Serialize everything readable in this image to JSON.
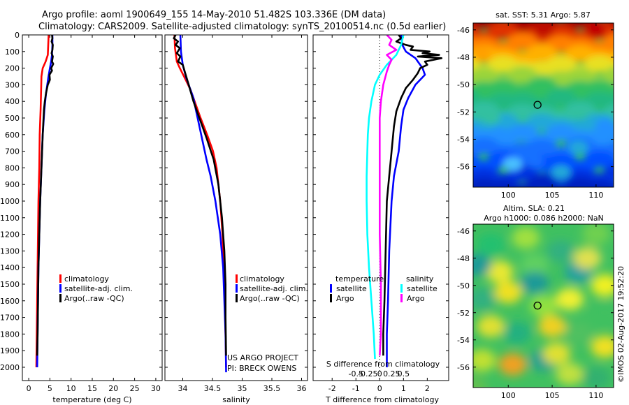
{
  "title": {
    "line1": "Argo profile: aoml 1900649_155 14-May-2010 51.482S 103.336E (DM data)",
    "line2": "Climatology: CARS2009. Satellite-adjusted climatology: synTS_20100514.nc (0.5d earlier)"
  },
  "credits": {
    "project": "US ARGO PROJECT",
    "pi": "PI: BRECK OWENS",
    "stamp": "©IMOS 02-Aug-2017 19:52:20"
  },
  "colors": {
    "climatology": "#ff0000",
    "satellite": "#0000ff",
    "argo": "#000000",
    "sal_satellite": "#00ffff",
    "sal_argo": "#ff00ff"
  },
  "chart_data": [
    {
      "type": "line",
      "id": "temperature",
      "xlabel": "temperature (deg C)",
      "xlim": [
        -1.5,
        31.5
      ],
      "ylim": [
        0,
        2080
      ],
      "y_inverted": true,
      "xticks": [
        0,
        5,
        10,
        15,
        20,
        25,
        30
      ],
      "yticks": [
        0,
        100,
        200,
        300,
        400,
        500,
        600,
        700,
        800,
        900,
        1000,
        1100,
        1200,
        1300,
        1400,
        1500,
        1600,
        1700,
        1800,
        1900,
        2000
      ],
      "legend": [
        "climatology",
        "satellite-adj. clim.",
        "Argo(..raw -QC)"
      ],
      "series": [
        {
          "name": "climatology",
          "color": "#ff0000",
          "points": [
            [
              4.7,
              0
            ],
            [
              4.6,
              60
            ],
            [
              4.5,
              120
            ],
            [
              4.0,
              160
            ],
            [
              3.3,
              200
            ],
            [
              3.0,
              250
            ],
            [
              2.9,
              350
            ],
            [
              2.8,
              450
            ],
            [
              2.6,
              600
            ],
            [
              2.5,
              800
            ],
            [
              2.3,
              1000
            ],
            [
              2.2,
              1200
            ],
            [
              2.1,
              1400
            ],
            [
              2.0,
              1600
            ],
            [
              1.9,
              1800
            ],
            [
              1.8,
              2000
            ]
          ]
        },
        {
          "name": "satellite-adj. clim.",
          "color": "#0000ff",
          "points": [
            [
              5.6,
              0
            ],
            [
              5.6,
              60
            ],
            [
              5.5,
              120
            ],
            [
              5.3,
              160
            ],
            [
              5.0,
              200
            ],
            [
              4.6,
              260
            ],
            [
              4.1,
              350
            ],
            [
              3.7,
              450
            ],
            [
              3.3,
              600
            ],
            [
              3.0,
              800
            ],
            [
              2.7,
              1000
            ],
            [
              2.5,
              1200
            ],
            [
              2.3,
              1400
            ],
            [
              2.2,
              1600
            ],
            [
              2.1,
              1800
            ],
            [
              2.0,
              2000
            ]
          ]
        },
        {
          "name": "Argo(..raw -QC)",
          "color": "#000000",
          "points": [
            [
              5.5,
              0
            ],
            [
              5.6,
              20
            ],
            [
              5.4,
              40
            ],
            [
              5.7,
              60
            ],
            [
              5.6,
              90
            ],
            [
              5.4,
              110
            ],
            [
              5.7,
              130
            ],
            [
              5.5,
              160
            ],
            [
              5.8,
              175
            ],
            [
              5.3,
              200
            ],
            [
              5.5,
              215
            ],
            [
              4.9,
              240
            ],
            [
              5.0,
              270
            ],
            [
              4.5,
              300
            ],
            [
              4.1,
              350
            ],
            [
              3.8,
              400
            ],
            [
              3.6,
              450
            ],
            [
              3.3,
              600
            ],
            [
              3.0,
              800
            ],
            [
              2.7,
              1000
            ],
            [
              2.5,
              1200
            ],
            [
              2.3,
              1400
            ],
            [
              2.2,
              1600
            ],
            [
              2.1,
              1800
            ],
            [
              2.0,
              1930
            ]
          ]
        }
      ]
    },
    {
      "type": "line",
      "id": "salinity",
      "xlabel": "salinity",
      "xlim": [
        33.7,
        36.1
      ],
      "ylim": [
        0,
        2080
      ],
      "y_inverted": true,
      "xticks": [
        34,
        34.5,
        35,
        35.5,
        36
      ],
      "legend": [
        "climatology",
        "satellite-adj. clim.",
        "Argo(..raw -QC)"
      ],
      "series": [
        {
          "name": "climatology",
          "color": "#ff0000",
          "points": [
            [
              33.86,
              0
            ],
            [
              33.87,
              80
            ],
            [
              33.9,
              160
            ],
            [
              33.95,
              200
            ],
            [
              34.05,
              270
            ],
            [
              34.13,
              330
            ],
            [
              34.2,
              400
            ],
            [
              34.3,
              500
            ],
            [
              34.41,
              600
            ],
            [
              34.51,
              700
            ],
            [
              34.57,
              800
            ],
            [
              34.63,
              1000
            ],
            [
              34.67,
              1200
            ],
            [
              34.7,
              1500
            ],
            [
              34.72,
              1800
            ],
            [
              34.73,
              2000
            ]
          ]
        },
        {
          "name": "satellite-adj. clim.",
          "color": "#0000ff",
          "points": [
            [
              33.96,
              0
            ],
            [
              33.97,
              100
            ],
            [
              34.0,
              180
            ],
            [
              34.06,
              260
            ],
            [
              34.12,
              320
            ],
            [
              34.18,
              380
            ],
            [
              34.22,
              450
            ],
            [
              34.28,
              550
            ],
            [
              34.34,
              650
            ],
            [
              34.4,
              750
            ],
            [
              34.47,
              850
            ],
            [
              34.55,
              1000
            ],
            [
              34.63,
              1200
            ],
            [
              34.68,
              1400
            ],
            [
              34.7,
              1600
            ],
            [
              34.72,
              1800
            ],
            [
              34.73,
              2030
            ]
          ]
        },
        {
          "name": "Argo(..raw -QC)",
          "color": "#000000",
          "points": [
            [
              33.88,
              0
            ],
            [
              33.85,
              20
            ],
            [
              33.92,
              40
            ],
            [
              33.88,
              60
            ],
            [
              33.95,
              80
            ],
            [
              33.9,
              110
            ],
            [
              33.96,
              130
            ],
            [
              33.92,
              160
            ],
            [
              34.0,
              180
            ],
            [
              34.05,
              240
            ],
            [
              34.1,
              300
            ],
            [
              34.18,
              400
            ],
            [
              34.3,
              520
            ],
            [
              34.4,
              620
            ],
            [
              34.52,
              750
            ],
            [
              34.6,
              900
            ],
            [
              34.66,
              1100
            ],
            [
              34.7,
              1300
            ],
            [
              34.72,
              1500
            ],
            [
              34.72,
              1700
            ],
            [
              34.73,
              1930
            ]
          ]
        }
      ]
    },
    {
      "type": "line",
      "id": "difference",
      "xlabel": "T difference from climatology",
      "xlabel2": "S difference from climatology",
      "xlim": [
        -2.8,
        2.9
      ],
      "ylim": [
        0,
        2080
      ],
      "y_inverted": true,
      "xticks": [
        -2,
        -1,
        0,
        1,
        2
      ],
      "xticks2": [
        "-0.5",
        "-0.25",
        "0",
        "0.25",
        "0.5"
      ],
      "legend_temperature_title": "temperature",
      "legend_salinity_title": "salinity",
      "legend": [
        "satellite",
        "Argo",
        "satellite",
        "Argo"
      ],
      "series": [
        {
          "name": "temperature satellite",
          "color": "#0000ff",
          "points": [
            [
              0.9,
              0
            ],
            [
              0.95,
              60
            ],
            [
              1.1,
              100
            ],
            [
              1.5,
              140
            ],
            [
              1.8,
              200
            ],
            [
              1.9,
              240
            ],
            [
              1.5,
              300
            ],
            [
              1.2,
              380
            ],
            [
              1.0,
              450
            ],
            [
              0.9,
              550
            ],
            [
              0.8,
              700
            ],
            [
              0.6,
              850
            ],
            [
              0.5,
              1000
            ],
            [
              0.4,
              1300
            ],
            [
              0.35,
              1600
            ],
            [
              0.3,
              1800
            ],
            [
              0.3,
              2000
            ]
          ]
        },
        {
          "name": "temperature Argo",
          "color": "#000000",
          "points": [
            [
              0.8,
              0
            ],
            [
              0.9,
              20
            ],
            [
              0.7,
              40
            ],
            [
              1.1,
              60
            ],
            [
              1.4,
              70
            ],
            [
              1.3,
              90
            ],
            [
              2.1,
              100
            ],
            [
              1.8,
              110
            ],
            [
              2.5,
              120
            ],
            [
              1.6,
              130
            ],
            [
              2.6,
              140
            ],
            [
              1.9,
              160
            ],
            [
              2.0,
              180
            ],
            [
              1.7,
              200
            ],
            [
              1.6,
              230
            ],
            [
              1.4,
              270
            ],
            [
              1.1,
              320
            ],
            [
              0.9,
              380
            ],
            [
              0.7,
              460
            ],
            [
              0.6,
              550
            ],
            [
              0.5,
              700
            ],
            [
              0.4,
              850
            ],
            [
              0.3,
              1000
            ],
            [
              0.25,
              1300
            ],
            [
              0.2,
              1600
            ],
            [
              0.15,
              1800
            ],
            [
              0.15,
              1930
            ]
          ]
        },
        {
          "name": "salinity satellite",
          "color": "#00ffff",
          "points": [
            [
              1.0,
              0
            ],
            [
              0.9,
              60
            ],
            [
              0.7,
              120
            ],
            [
              0.3,
              180
            ],
            [
              0.0,
              240
            ],
            [
              -0.2,
              300
            ],
            [
              -0.35,
              400
            ],
            [
              -0.45,
              500
            ],
            [
              -0.5,
              600
            ],
            [
              -0.52,
              700
            ],
            [
              -0.55,
              850
            ],
            [
              -0.55,
              1000
            ],
            [
              -0.52,
              1200
            ],
            [
              -0.45,
              1400
            ],
            [
              -0.35,
              1600
            ],
            [
              -0.25,
              1800
            ],
            [
              -0.2,
              1950
            ]
          ]
        },
        {
          "name": "salinity Argo",
          "color": "#ff00ff",
          "points": [
            [
              0.3,
              0
            ],
            [
              0.5,
              30
            ],
            [
              0.4,
              60
            ],
            [
              0.7,
              90
            ],
            [
              0.3,
              120
            ],
            [
              0.5,
              150
            ],
            [
              0.4,
              180
            ],
            [
              0.3,
              220
            ],
            [
              0.15,
              300
            ],
            [
              0.05,
              400
            ],
            [
              0.0,
              500
            ],
            [
              0.0,
              700
            ],
            [
              0.0,
              900
            ],
            [
              0.0,
              1200
            ],
            [
              0.05,
              1500
            ],
            [
              0.05,
              1800
            ],
            [
              0.0,
              1930
            ]
          ]
        }
      ]
    },
    {
      "type": "heatmap",
      "id": "sst",
      "title": "sat. SST: 5.31  Argo: 5.87",
      "xticks": [
        100,
        105,
        110
      ],
      "yticks": [
        -46,
        -48,
        -50,
        -52,
        -54,
        -56
      ],
      "xlim": [
        96,
        112
      ],
      "ylim": [
        -57.5,
        -45.5
      ],
      "profile_location": [
        103.336,
        -51.482
      ]
    },
    {
      "type": "heatmap",
      "id": "sla",
      "title": "Altim. SLA: 0.21",
      "subtitle": "Argo h1000: 0.086 h2000: NaN",
      "xticks": [
        100,
        105,
        110
      ],
      "yticks": [
        -46,
        -48,
        -50,
        -52,
        -54,
        -56
      ],
      "xlim": [
        96,
        112
      ],
      "ylim": [
        -57.5,
        -45.5
      ],
      "profile_location": [
        103.336,
        -51.482
      ]
    }
  ]
}
